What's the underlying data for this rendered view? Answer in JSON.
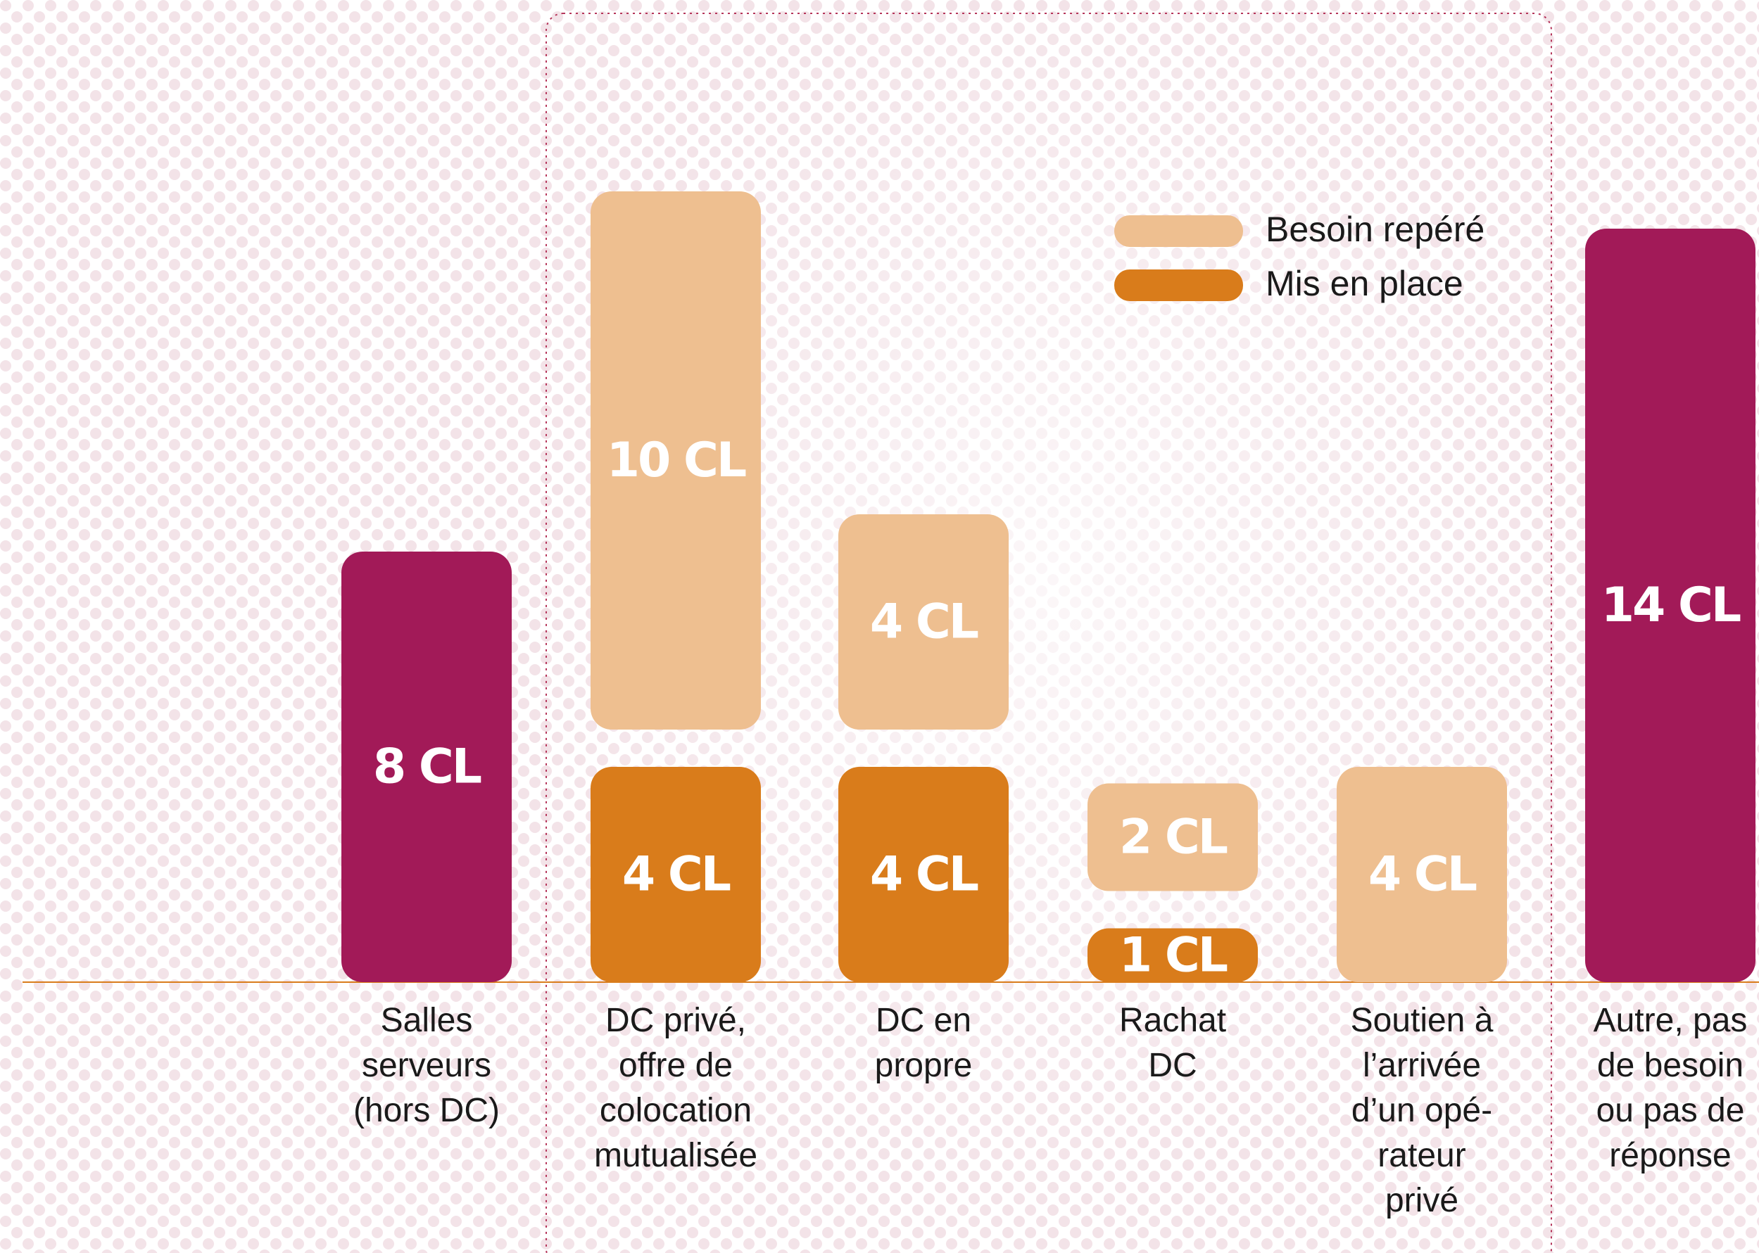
{
  "chart_data": {
    "type": "bar",
    "categories": [
      [
        "Salles",
        "serveurs",
        "(hors DC)"
      ],
      [
        "DC privé,",
        "offre de",
        "colocation",
        "mutualisée"
      ],
      [
        "DC en",
        "propre"
      ],
      [
        "Rachat",
        "DC"
      ],
      [
        "Soutien à",
        "l’arrivée",
        "d’un opé-",
        "rateur",
        "privé"
      ],
      [
        "Autre, pas",
        "de besoin",
        "ou pas de",
        "réponse"
      ]
    ],
    "totals": {
      "color": "#a21a58",
      "values": [
        8,
        null,
        null,
        null,
        null,
        14
      ],
      "value_labels": [
        "8 CL",
        null,
        null,
        null,
        null,
        "14 CL"
      ]
    },
    "series": [
      {
        "name": "Mis en place",
        "color": "#d97c1b",
        "values": [
          null,
          4,
          4,
          1,
          null,
          null
        ],
        "value_labels": [
          null,
          "4 CL",
          "4 CL",
          "1 CL",
          null,
          null
        ]
      },
      {
        "name": "Besoin repéré",
        "color": "#eebf90",
        "values": [
          null,
          10,
          4,
          2,
          4,
          null
        ],
        "value_labels": [
          null,
          "10 CL",
          "4 CL",
          "2 CL",
          "4 CL",
          null
        ]
      }
    ],
    "legend": "top-right",
    "axis_color": "#d97c1b"
  }
}
